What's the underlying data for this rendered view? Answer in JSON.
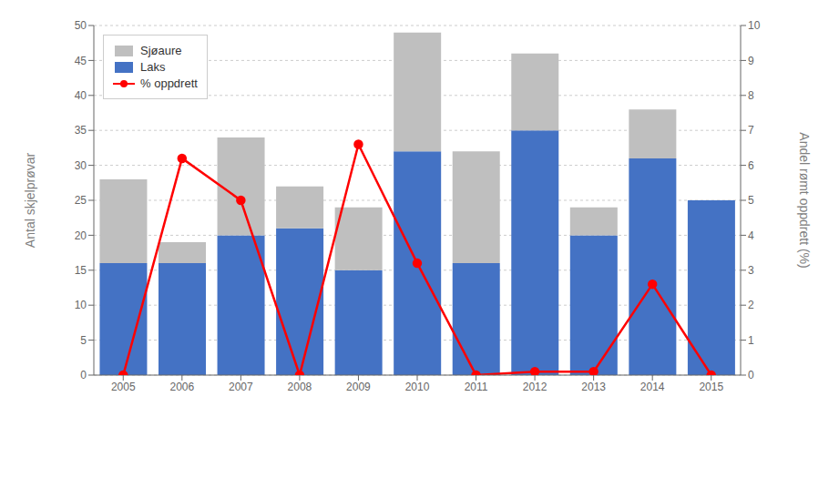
{
  "chart_data": {
    "type": "bar",
    "stacked": true,
    "categories": [
      "2005",
      "2006",
      "2007",
      "2008",
      "2009",
      "2010",
      "2011",
      "2012",
      "2013",
      "2014",
      "2015"
    ],
    "series": [
      {
        "name": "Laks",
        "color": "#4472C4",
        "values": [
          16,
          16,
          20,
          21,
          15,
          32,
          16,
          35,
          20,
          31,
          25
        ]
      },
      {
        "name": "Sjøaure",
        "color": "#BFBFBF",
        "values": [
          12,
          3,
          14,
          6,
          9,
          17,
          16,
          11,
          4,
          7,
          0
        ]
      },
      {
        "name": "% oppdrett",
        "type": "line",
        "color": "#FF0000",
        "marker": "circle",
        "axis": "y2",
        "values": [
          0,
          6.2,
          5.0,
          0,
          6.6,
          3.2,
          0,
          0.1,
          0.1,
          2.6,
          0
        ]
      }
    ],
    "ylabel": "Antal skjelprøvar",
    "y2label": "Andel rømt oppdrett (%)",
    "ylim": [
      0,
      50
    ],
    "yticks": [
      0,
      5,
      10,
      15,
      20,
      25,
      30,
      35,
      40,
      45,
      50
    ],
    "y2lim": [
      0,
      10
    ],
    "y2ticks": [
      0,
      1,
      2,
      3,
      4,
      5,
      6,
      7,
      8,
      9,
      10
    ],
    "grid": true,
    "legend": "upper left"
  }
}
